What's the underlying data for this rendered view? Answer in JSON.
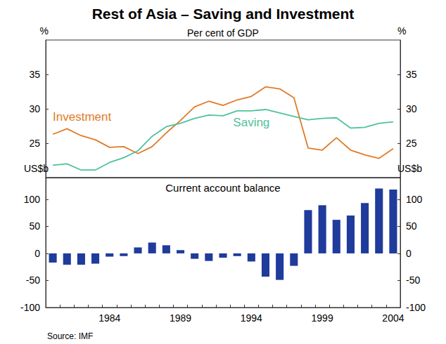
{
  "chart_data": [
    {
      "type": "line",
      "title": "Rest of Asia – Saving and Investment",
      "subtitle": "Per cent of GDP",
      "y_label": "%",
      "categories": [
        null,
        null,
        null,
        null,
        "1984",
        null,
        null,
        null,
        null,
        "1989",
        null,
        null,
        null,
        null,
        "1994",
        null,
        null,
        null,
        null,
        "1999",
        null,
        null,
        null,
        null,
        "2004"
      ],
      "series": [
        {
          "name": "Investment",
          "color": "#e07b28",
          "values": [
            26.3,
            27.1,
            26.1,
            25.5,
            24.4,
            24.5,
            23.5,
            24.5,
            26.5,
            28.3,
            30.3,
            31.1,
            30.5,
            31.3,
            31.8,
            33.2,
            32.9,
            31.6,
            24.3,
            24.0,
            25.8,
            24.0,
            23.3,
            22.8,
            24.2
          ]
        },
        {
          "name": "Saving",
          "color": "#4fc29c",
          "values": [
            21.8,
            22.0,
            21.1,
            21.1,
            22.2,
            22.9,
            23.9,
            26.0,
            27.4,
            27.9,
            28.6,
            29.1,
            29.0,
            29.7,
            29.7,
            29.9,
            29.4,
            28.9,
            28.4,
            28.6,
            28.7,
            27.2,
            27.3,
            27.9,
            28.1
          ]
        }
      ],
      "ylim": [
        20,
        40
      ],
      "yticks": [
        25,
        30,
        35
      ],
      "grid": false,
      "tick_labels": "y"
    },
    {
      "type": "bar",
      "title": "Current account balance",
      "y_label": "US$b",
      "categories": [
        null,
        null,
        null,
        null,
        "1984",
        null,
        null,
        null,
        null,
        "1989",
        null,
        null,
        null,
        null,
        "1994",
        null,
        null,
        null,
        null,
        "1999",
        null,
        null,
        null,
        null,
        "2004"
      ],
      "values": [
        -17,
        -21,
        -21,
        -19,
        -6,
        -5,
        11,
        20,
        15,
        6,
        -10,
        -14,
        -8,
        -5,
        -15,
        -43,
        -49,
        -23,
        80,
        89,
        62,
        70,
        93,
        120,
        118
      ],
      "color": "#1f3b9b",
      "ylim": [
        -100,
        140
      ],
      "yticks": [
        -100,
        -50,
        0,
        50,
        100
      ],
      "grid": false,
      "source": "Source: IMF"
    }
  ]
}
